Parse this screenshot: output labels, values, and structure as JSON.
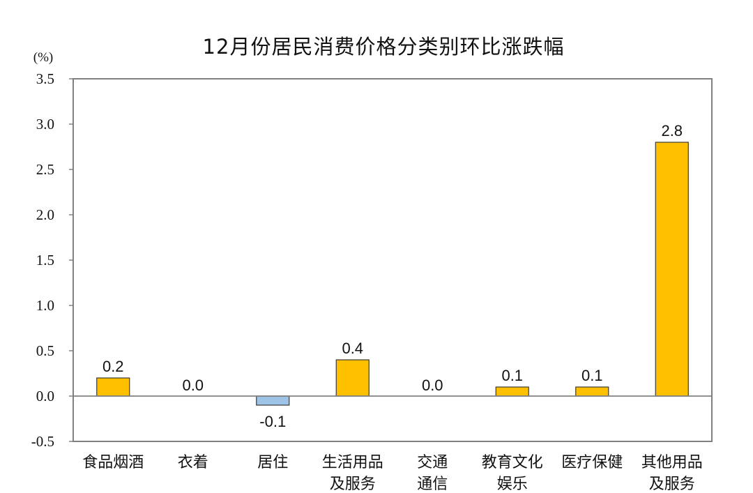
{
  "chart_data": {
    "type": "bar",
    "title": "12月份居民消费价格分类别环比涨跌幅",
    "ylabel": "(%)",
    "xlabel": "",
    "ylim": [
      -0.5,
      3.5
    ],
    "yticks": [
      "3.5",
      "3.0",
      "2.5",
      "2.0",
      "1.5",
      "1.0",
      "0.5",
      "0.0",
      "-0.5"
    ],
    "categories": [
      [
        "食品烟酒"
      ],
      [
        "衣着"
      ],
      [
        "居住"
      ],
      [
        "生活用品",
        "及服务"
      ],
      [
        "交通",
        "通信"
      ],
      [
        "教育文化",
        "娱乐"
      ],
      [
        "医疗保健"
      ],
      [
        "其他用品",
        "及服务"
      ]
    ],
    "values": [
      0.2,
      0.0,
      -0.1,
      0.4,
      0.0,
      0.1,
      0.1,
      2.8
    ],
    "data_labels": [
      "0.2",
      "0.0",
      "-0.1",
      "0.4",
      "0.0",
      "0.1",
      "0.1",
      "2.8"
    ],
    "colors": {
      "positive": "#FFC000",
      "negative": "#9DC3E6",
      "bar_border": "#3a3a3a",
      "axis": "#808080"
    },
    "grid": false,
    "legend": "none"
  }
}
